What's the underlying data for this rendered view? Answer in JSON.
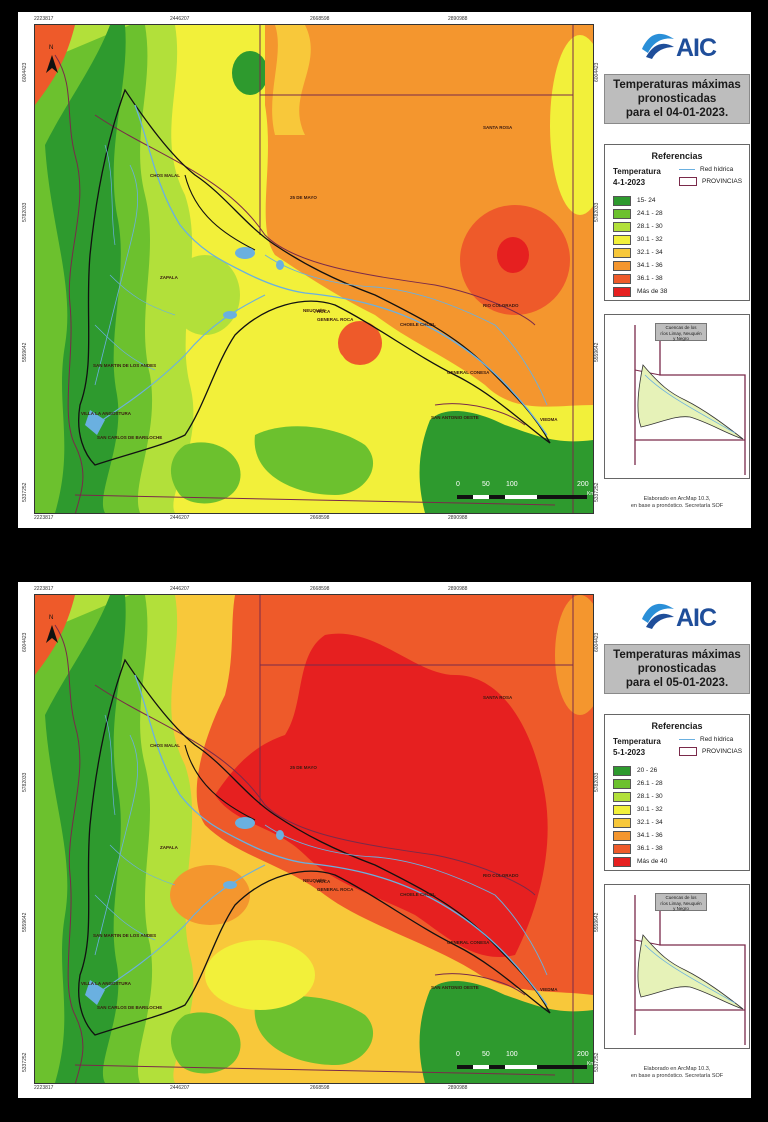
{
  "panels": [
    {
      "logo": "AIC",
      "title_lines": [
        "Temperaturas máximas",
        "pronosticadas",
        "para el 04-01-2023."
      ],
      "legend": {
        "heading": "Referencias",
        "variable": "Temperatura",
        "date": "4-1-2023",
        "red_hidrica": "Red hídrica",
        "provincias": "PROVINCIAS",
        "classes": [
          {
            "label": "15- 24",
            "color": "#2e9a2e"
          },
          {
            "label": "24.1 - 28",
            "color": "#6cc12e"
          },
          {
            "label": "28.1 - 30",
            "color": "#b2e03a"
          },
          {
            "label": "30.1 - 32",
            "color": "#f2f03a"
          },
          {
            "label": "32.1 - 34",
            "color": "#f8c83a"
          },
          {
            "label": "34.1 - 36",
            "color": "#f4962e"
          },
          {
            "label": "36.1 - 38",
            "color": "#ee5a2a"
          },
          {
            "label": "Más de 38",
            "color": "#e62020"
          }
        ]
      },
      "inset_label": [
        "Cuencas de los",
        "ríos Limay, Neuquén",
        "y Negro"
      ],
      "credit": [
        "Elaborado en ArcMap 10.3,",
        "en base a pronóstico. Secretaría SOF"
      ],
      "scale": [
        "0",
        "50",
        "100",
        "200"
      ],
      "scale_unit": "Km",
      "north": "N",
      "coords_top": [
        "2223817",
        "2446207",
        "2668598",
        "2890988"
      ],
      "coords_left": [
        "6004423",
        "5782033",
        "5559642",
        "5337252"
      ],
      "places": [
        "SANTA ROSA",
        "CHOS MALAL",
        "25 DE MAYO",
        "ZAPALA",
        "NEUQUÉN",
        "GENERAL ROCA",
        "RIO COLORADO",
        "ROCA",
        "SAN MARTIN DE LOS ANDES",
        "VILLA LA ANGOSTURA",
        "SAN CARLOS DE BARILOCHE",
        "CHOELE CHOEL",
        "GENERAL CONESA",
        "SAN ANTONIO OESTE",
        "VIEDMA"
      ],
      "variant": "day4"
    },
    {
      "logo": "AIC",
      "title_lines": [
        "Temperaturas máximas",
        "pronosticadas",
        "para el 05-01-2023."
      ],
      "legend": {
        "heading": "Referencias",
        "variable": "Temperatura",
        "date": "5-1-2023",
        "red_hidrica": "Red hídrica",
        "provincias": "PROVINCIAS",
        "classes": [
          {
            "label": "20 - 26",
            "color": "#2e9a2e"
          },
          {
            "label": "26.1 - 28",
            "color": "#6cc12e"
          },
          {
            "label": "28.1 - 30",
            "color": "#b2e03a"
          },
          {
            "label": "30.1 - 32",
            "color": "#f2f03a"
          },
          {
            "label": "32.1 - 34",
            "color": "#f8c83a"
          },
          {
            "label": "34.1 - 36",
            "color": "#f4962e"
          },
          {
            "label": "36.1 - 38",
            "color": "#ee5a2a"
          },
          {
            "label": "Más de 40",
            "color": "#e62020"
          }
        ]
      },
      "inset_label": [
        "Cuencas de los",
        "ríos Limay, Neuquén",
        "y Negro"
      ],
      "credit": [
        "Elaborado en ArcMap 10.3,",
        "en base a pronóstico. Secretaría SOF"
      ],
      "scale": [
        "0",
        "50",
        "100",
        "200"
      ],
      "scale_unit": "Km",
      "north": "N",
      "coords_top": [
        "2223817",
        "2446207",
        "2668598",
        "2890988"
      ],
      "coords_left": [
        "6004423",
        "5782033",
        "5559642",
        "5337252"
      ],
      "places": [
        "SANTA ROSA",
        "CHOS MALAL",
        "25 DE MAYO",
        "ZAPALA",
        "NEUQUÉN",
        "GENERAL ROCA",
        "RIO COLORADO",
        "ROCA",
        "SAN MARTIN DE LOS ANDES",
        "VILLA LA ANGOSTURA",
        "SAN CARLOS DE BARILOCHE",
        "CHOELE CHOEL",
        "GENERAL CONESA",
        "SAN ANTONIO OESTE",
        "VIEDMA"
      ],
      "variant": "day5"
    }
  ]
}
